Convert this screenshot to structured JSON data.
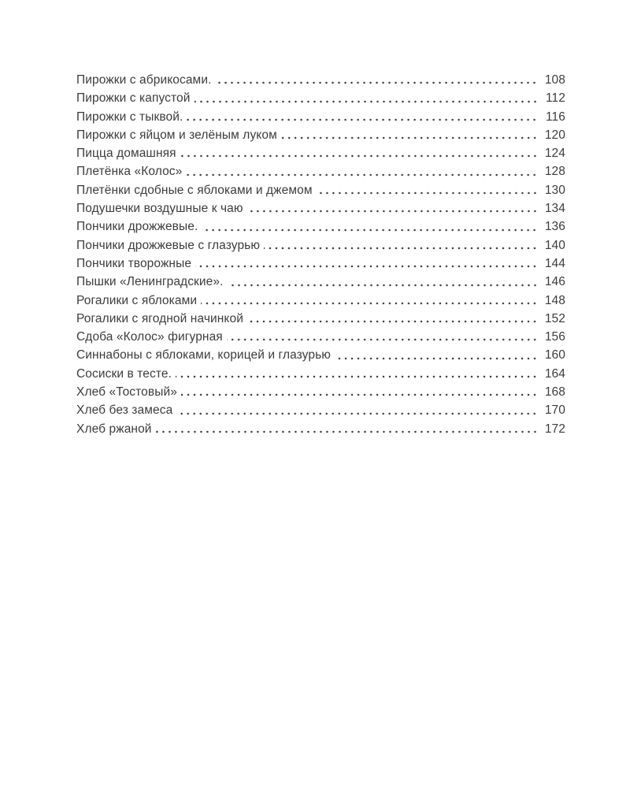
{
  "page": {
    "background_color": "#ffffff",
    "text_color": "#3c3c3c"
  },
  "toc": {
    "entries": [
      {
        "title": "Пирожки с абрикосами.",
        "page": "108"
      },
      {
        "title": "Пирожки с капустой",
        "page": "112"
      },
      {
        "title": "Пирожки с тыквой.",
        "page": "116"
      },
      {
        "title": "Пирожки с яйцом и зелёным луком",
        "page": "120"
      },
      {
        "title": "Пицца домашняя",
        "page": "124"
      },
      {
        "title": "Плетёнка «Колос»",
        "page": "128"
      },
      {
        "title": "Плетёнки сдобные с яблоками и джемом",
        "page": "130"
      },
      {
        "title": "Подушечки воздушные к чаю",
        "page": "134"
      },
      {
        "title": "Пончики дрожжевые.",
        "page": "136"
      },
      {
        "title": "Пончики дрожжевые с глазурью",
        "page": "140"
      },
      {
        "title": "Пончики творожные",
        "page": "144"
      },
      {
        "title": "Пышки «Ленинградские».",
        "page": "146"
      },
      {
        "title": "Рогалики с яблоками",
        "page": "148"
      },
      {
        "title": "Рогалики с ягодной начинкой",
        "page": "152"
      },
      {
        "title": "Сдоба «Колос» фигурная",
        "page": "156"
      },
      {
        "title": "Синнабоны с яблоками, корицей и глазурью",
        "page": "160"
      },
      {
        "title": "Сосиски в тесте.",
        "page": "164"
      },
      {
        "title": "Хлеб «Тостовый»",
        "page": "168"
      },
      {
        "title": "Хлеб без замеса",
        "page": "170"
      },
      {
        "title": "Хлеб ржаной",
        "page": "172"
      }
    ]
  }
}
